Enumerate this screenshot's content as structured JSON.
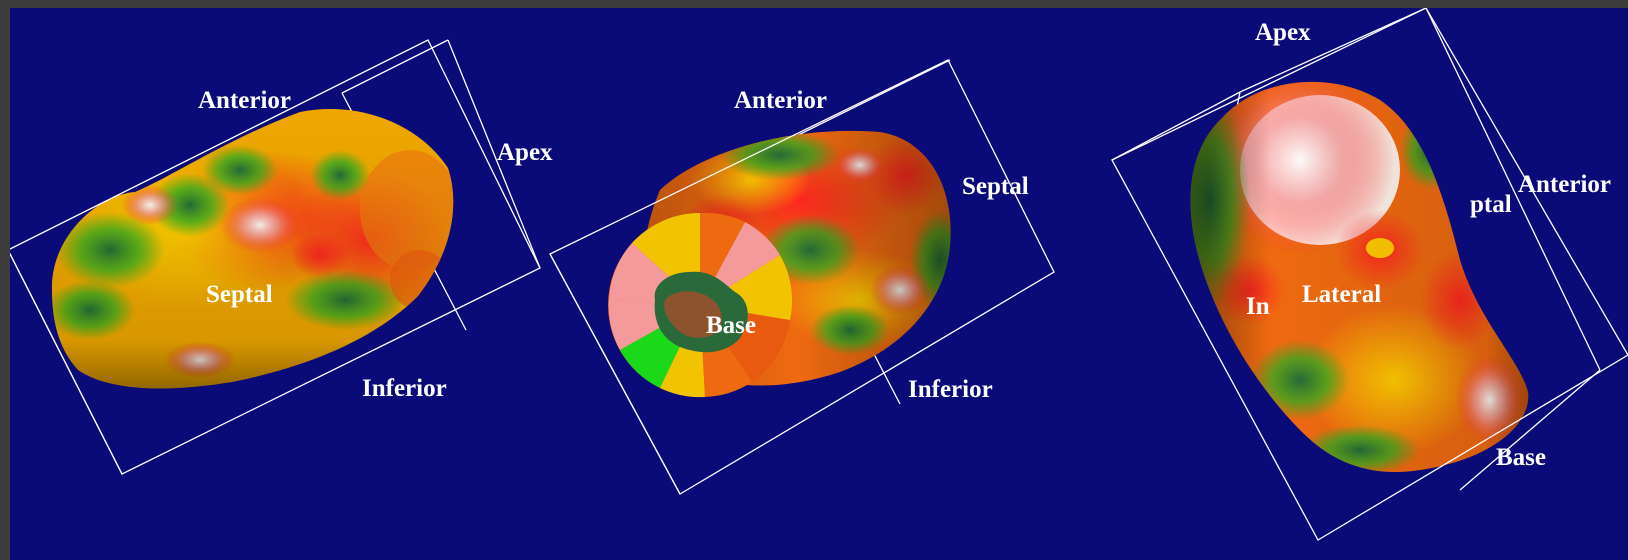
{
  "colors": {
    "background": "#0a0a78",
    "frame": "#3c3c3c",
    "box_lines": "#ffffff",
    "map_scale": [
      "#2a7a3a",
      "#1bd81b",
      "#f2c300",
      "#ee6a10",
      "#ff2a2a",
      "#f48a8a",
      "#ffffff"
    ]
  },
  "views": [
    {
      "name": "view-left",
      "labels": {
        "anterior": "Anterior",
        "apex": "Apex",
        "septal": "Septal",
        "inferior": "Inferior"
      }
    },
    {
      "name": "view-middle",
      "labels": {
        "anterior": "Anterior",
        "septal": "Septal",
        "base": "Base",
        "inferior": "Inferior"
      }
    },
    {
      "name": "view-right",
      "labels": {
        "apex": "Apex",
        "anterior": "Anterior",
        "septal_partial": "ptal",
        "inferior_partial": "In",
        "lateral": "Lateral",
        "base": "Base"
      }
    }
  ]
}
